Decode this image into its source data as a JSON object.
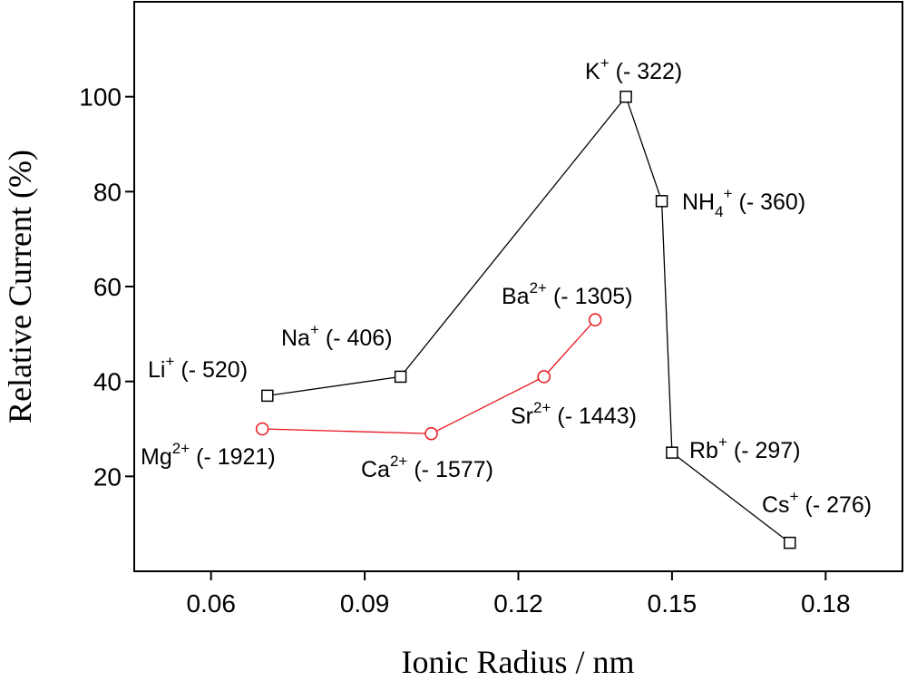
{
  "chart_data": {
    "type": "line",
    "xlabel": "Ionic Radius / nm",
    "ylabel": "Relative Current (%)",
    "xlim": [
      0.045,
      0.195
    ],
    "xticks": [
      0.06,
      0.09,
      0.12,
      0.15,
      0.18
    ],
    "ylim": [
      0,
      120
    ],
    "yticks": [
      20,
      40,
      60,
      80,
      100
    ],
    "series": [
      {
        "color": "#000000",
        "marker": "square",
        "x": [
          0.071,
          0.097,
          0.141,
          0.148,
          0.15,
          0.173
        ],
        "values": [
          37,
          41,
          100,
          78,
          25,
          6
        ],
        "labels": [
          {
            "base": "Li",
            "sup": "+",
            "note": "(- 520)"
          },
          {
            "base": "Na",
            "sup": "+",
            "note": "(- 406)"
          },
          {
            "base": "K",
            "sup": "+",
            "note": "(- 322)"
          },
          {
            "base": "NH",
            "sub": "4",
            "sup": "+",
            "note": "(- 360)"
          },
          {
            "base": "Rb",
            "sup": "+",
            "note": "(- 297)"
          },
          {
            "base": "Cs",
            "sup": "+",
            "note": "(- 276)"
          }
        ]
      },
      {
        "color": "#e8141b",
        "marker": "circle",
        "x": [
          0.07,
          0.103,
          0.125,
          0.135
        ],
        "values": [
          30,
          29,
          41,
          53
        ],
        "labels": [
          {
            "base": "Mg",
            "sup": "2+",
            "note": "(- 1921)"
          },
          {
            "base": "Ca",
            "sup": "2+",
            "note": "(- 1577)"
          },
          {
            "base": "Sr",
            "sup": "2+",
            "note": "(- 1443)"
          },
          {
            "base": "Ba",
            "sup": "2+",
            "note": "(- 1305)"
          }
        ]
      }
    ]
  }
}
